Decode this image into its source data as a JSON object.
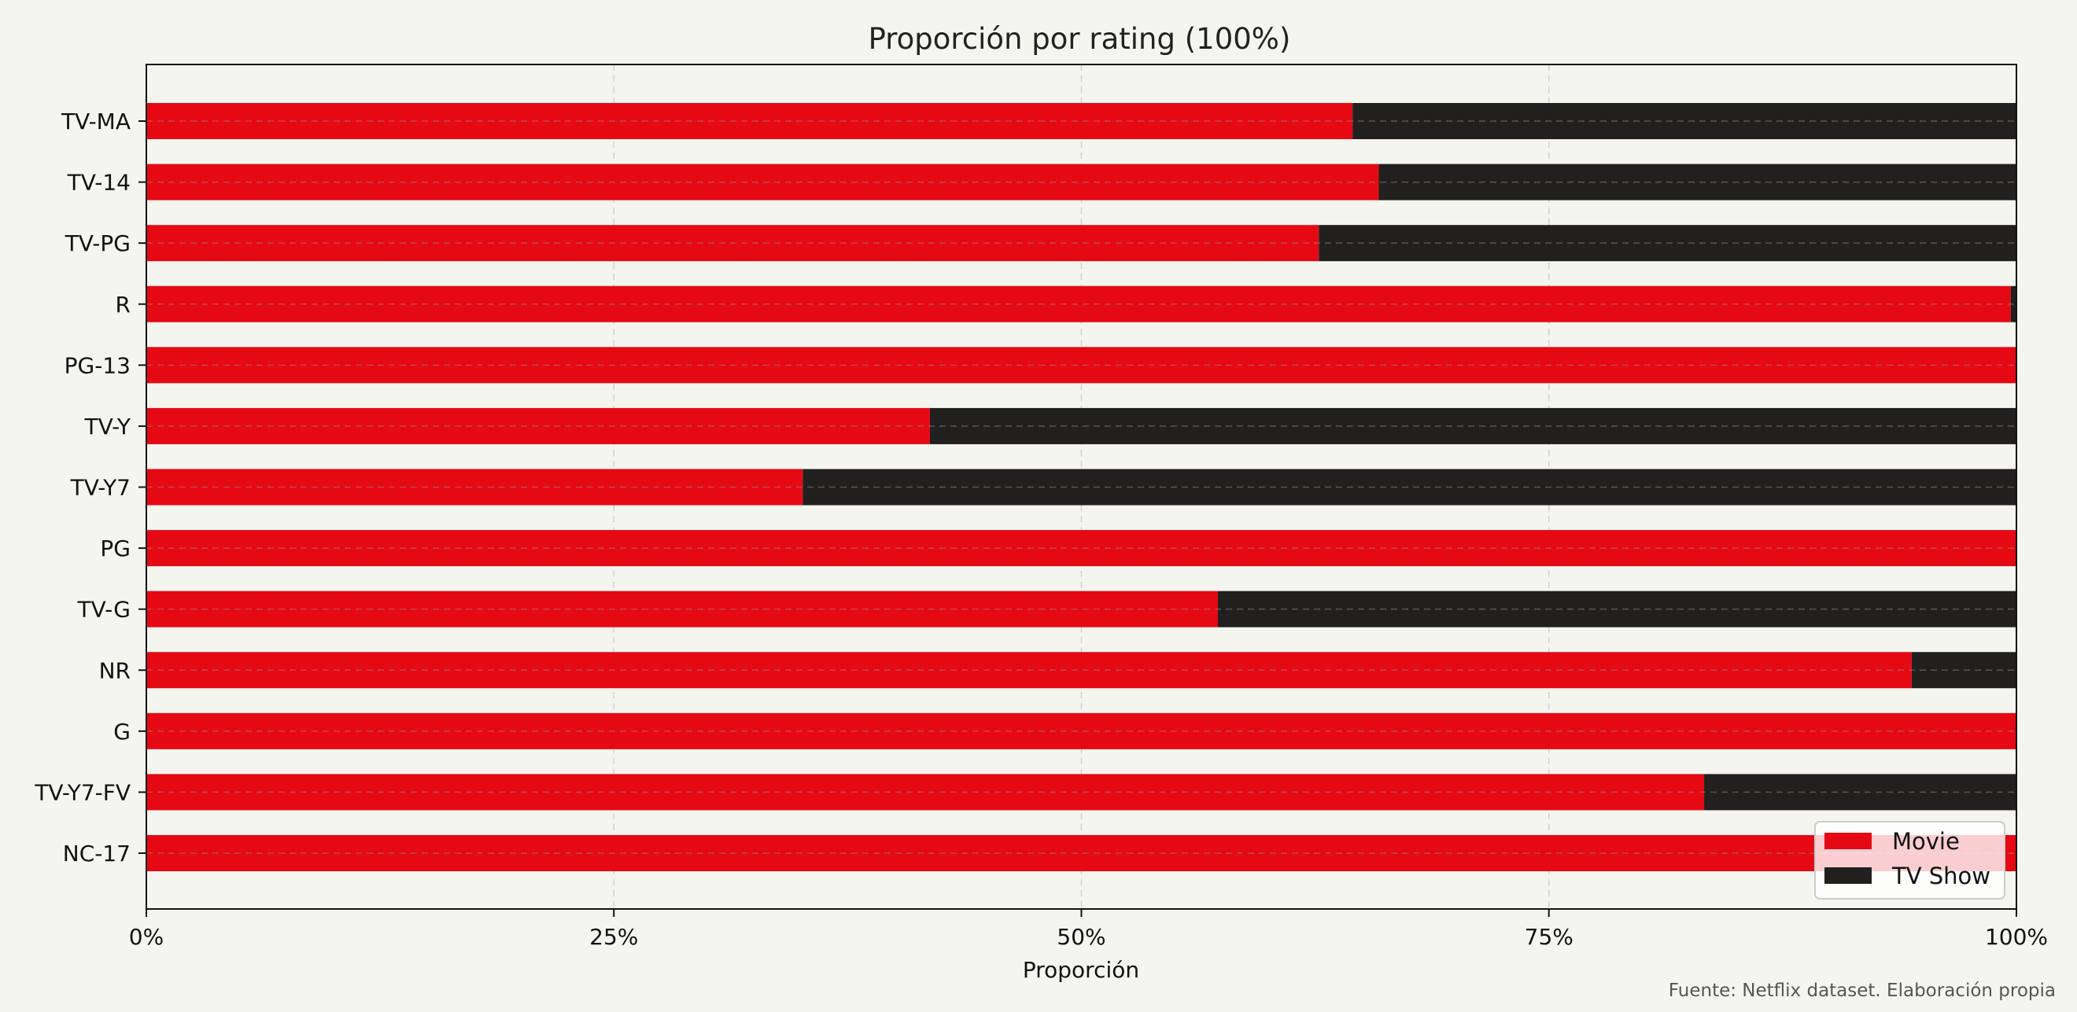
{
  "chart_data": {
    "type": "bar",
    "orientation": "horizontal",
    "stacked": true,
    "normalized": true,
    "title": "Proporción por rating (100%)",
    "xlabel": "Proporción",
    "ylabel": "",
    "xlim": [
      0,
      1
    ],
    "xticks": [
      {
        "value": 0,
        "label": "0%"
      },
      {
        "value": 0.25,
        "label": "25%"
      },
      {
        "value": 0.5,
        "label": "50%"
      },
      {
        "value": 0.75,
        "label": "75%"
      },
      {
        "value": 1,
        "label": "100%"
      }
    ],
    "categories": [
      "TV-MA",
      "TV-14",
      "TV-PG",
      "R",
      "PG-13",
      "TV-Y",
      "TV-Y7",
      "PG",
      "TV-G",
      "NR",
      "G",
      "TV-Y7-FV",
      "NC-17"
    ],
    "series": [
      {
        "name": "Movie",
        "color": "#e50914",
        "values": [
          0.645,
          0.659,
          0.627,
          0.997,
          1.0,
          0.419,
          0.351,
          1.0,
          0.573,
          0.944,
          1.0,
          0.833,
          1.0
        ]
      },
      {
        "name": "TV Show",
        "color": "#221f1f",
        "values": [
          0.355,
          0.341,
          0.373,
          0.003,
          0.0,
          0.581,
          0.649,
          0.0,
          0.427,
          0.056,
          0.0,
          0.167,
          0.0
        ]
      }
    ],
    "grid": {
      "x": true,
      "y": true,
      "style": "dashed"
    },
    "legend_position": "bottom-right",
    "source_note": "Fuente: Netflix dataset. Elaboración propia"
  }
}
